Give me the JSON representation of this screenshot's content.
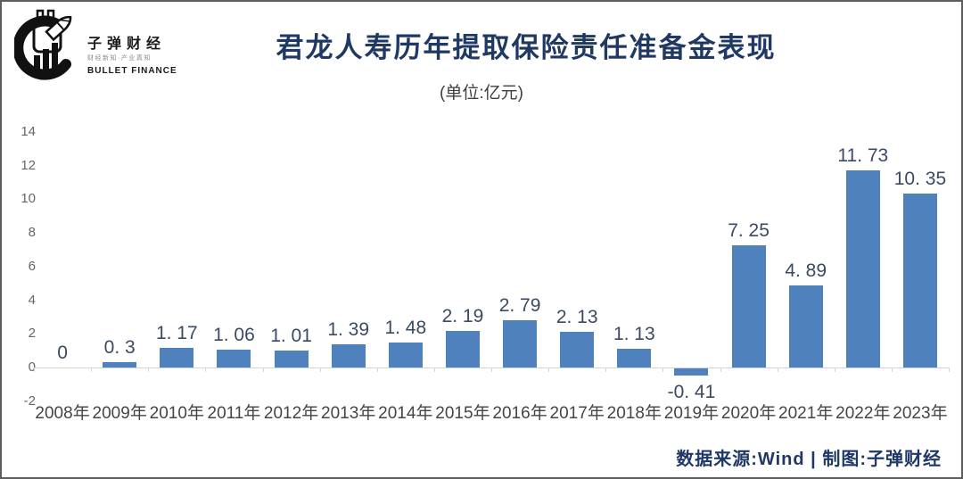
{
  "logo": {
    "name_cn": "子弹财经",
    "tagline": "财经新知·产业真知",
    "name_en": "BULLET FINANCE"
  },
  "header": {
    "title": "君龙人寿历年提取保险责任准备金表现",
    "subtitle": "(单位:亿元)"
  },
  "footer": {
    "text": "数据来源:Wind | 制图:子弹财经"
  },
  "colors": {
    "bar": "#4f81bd",
    "title": "#1f3864",
    "value_label": "#3a4a63",
    "axis_label": "#454545",
    "ytick_label": "#666666",
    "baseline": "#d4d4d4"
  },
  "chart_data": {
    "type": "bar",
    "title": "君龙人寿历年提取保险责任准备金表现",
    "unit_label": "(单位:亿元)",
    "categories": [
      "2008年",
      "2009年",
      "2010年",
      "2011年",
      "2012年",
      "2013年",
      "2014年",
      "2015年",
      "2016年",
      "2017年",
      "2018年",
      "2019年",
      "2020年",
      "2021年",
      "2022年",
      "2023年"
    ],
    "values": [
      0,
      0.3,
      1.17,
      1.06,
      1.01,
      1.39,
      1.48,
      2.19,
      2.79,
      2.13,
      1.13,
      -0.41,
      7.25,
      4.89,
      11.73,
      10.35
    ],
    "value_labels": [
      "0",
      "0. 3",
      "1. 17",
      "1. 06",
      "1. 01",
      "1. 39",
      "1. 48",
      "2. 19",
      "2. 79",
      "2. 13",
      "1. 13",
      "-0. 41",
      "7. 25",
      "4. 89",
      "11. 73",
      "10. 35"
    ],
    "yticks": [
      -2,
      0,
      2,
      4,
      6,
      8,
      10,
      12,
      14
    ],
    "ylim": [
      -2,
      14
    ],
    "grid": false,
    "legend": "none",
    "xlabel": "",
    "ylabel": ""
  }
}
